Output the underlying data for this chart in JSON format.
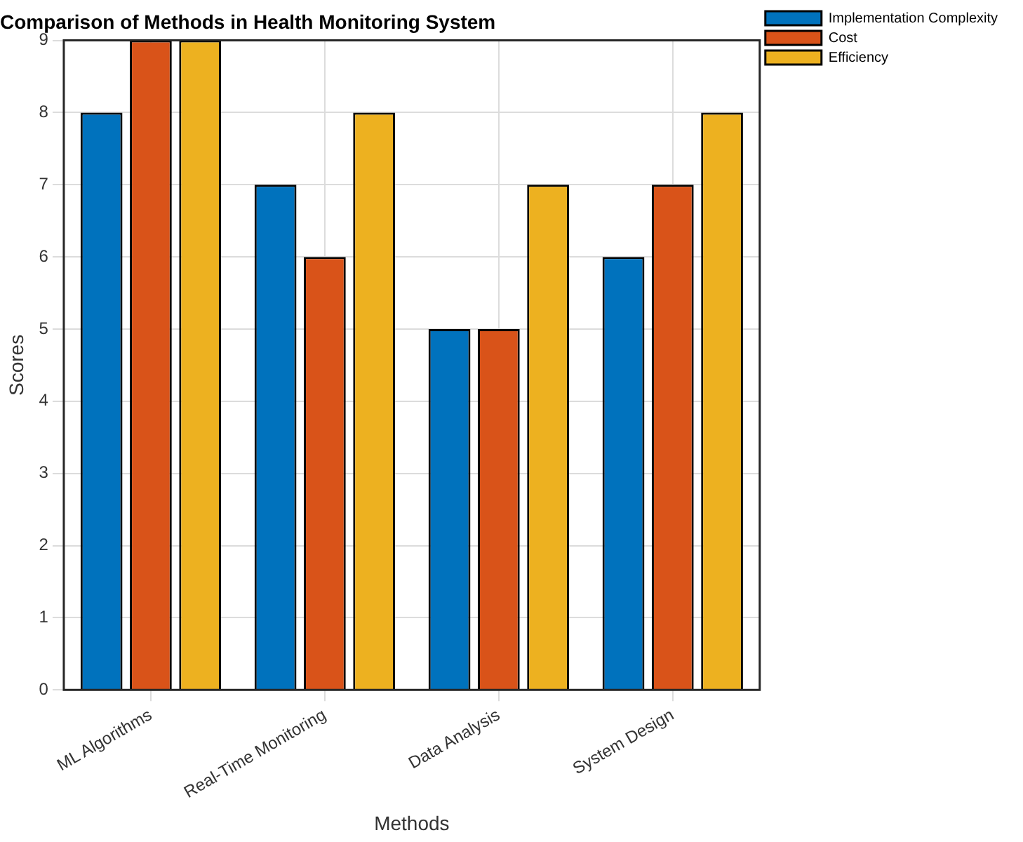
{
  "chart_data": {
    "type": "bar",
    "title": "Comparison of Methods in Health Monitoring System",
    "xlabel": "Methods",
    "ylabel": "Scores",
    "categories": [
      "ML Algorithms",
      "Real-Time Monitoring",
      "Data Analysis",
      "System Design"
    ],
    "series": [
      {
        "name": "Implementation Complexity",
        "color": "#0072bd",
        "values": [
          8,
          7,
          5,
          6
        ]
      },
      {
        "name": "Cost",
        "color": "#d95319",
        "values": [
          9,
          6,
          5,
          7
        ]
      },
      {
        "name": "Efficiency",
        "color": "#edb120",
        "values": [
          9,
          8,
          7,
          8
        ]
      }
    ],
    "ylim": [
      0,
      9
    ],
    "yticks": [
      0,
      1,
      2,
      3,
      4,
      5,
      6,
      7,
      8,
      9
    ],
    "grid": true,
    "legend": "top right"
  }
}
